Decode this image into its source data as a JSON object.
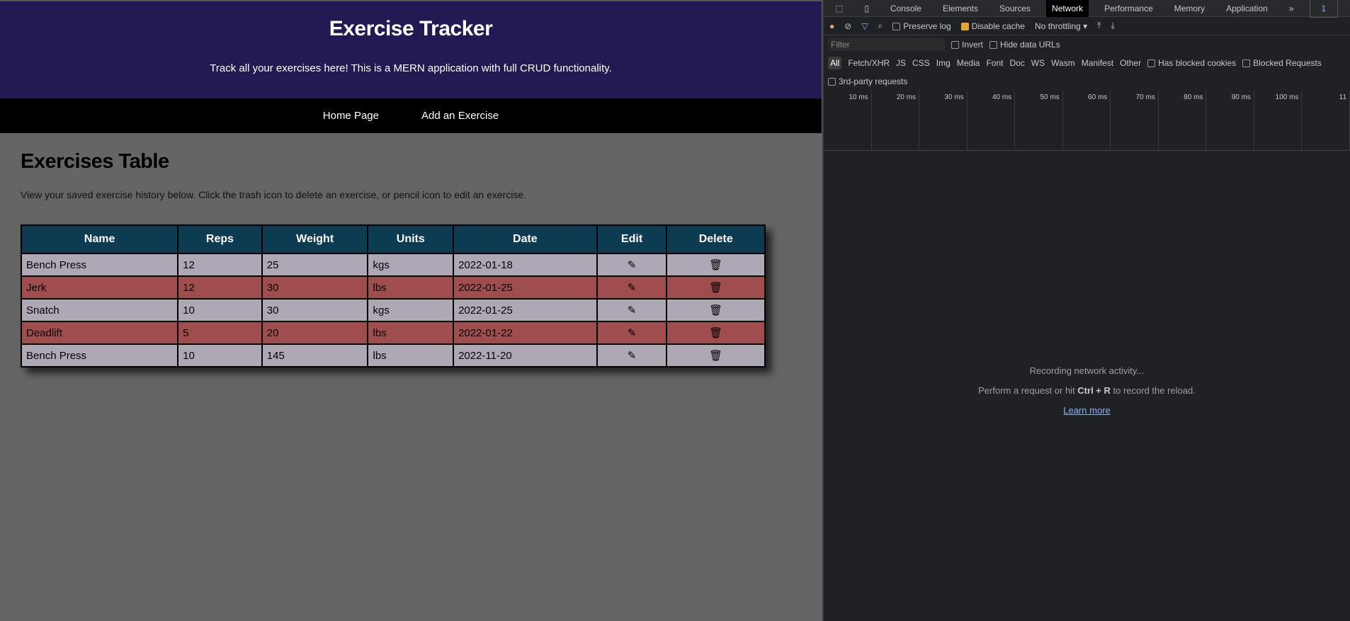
{
  "app": {
    "title": "Exercise Tracker",
    "subtitle": "Track all your exercises here!  This is a MERN application with full CRUD functionality.",
    "nav": [
      "Home Page",
      "Add an Exercise"
    ],
    "heading": "Exercises Table",
    "description": "View your saved exercise history below. Click the trash icon to delete an exercise, or pencil icon to edit an exercise.",
    "columns": [
      "Name",
      "Reps",
      "Weight",
      "Units",
      "Date",
      "Edit",
      "Delete"
    ],
    "rows": [
      {
        "name": "Bench Press",
        "reps": "12",
        "weight": "25",
        "units": "kgs",
        "date": "2022-01-18"
      },
      {
        "name": "Jerk",
        "reps": "12",
        "weight": "30",
        "units": "lbs",
        "date": "2022-01-25"
      },
      {
        "name": "Snatch",
        "reps": "10",
        "weight": "30",
        "units": "kgs",
        "date": "2022-01-25"
      },
      {
        "name": "Deadlift",
        "reps": "5",
        "weight": "20",
        "units": "lbs",
        "date": "2022-01-22"
      },
      {
        "name": "Bench Press",
        "reps": "10",
        "weight": "145",
        "units": "lbs",
        "date": "2022-11-20"
      }
    ]
  },
  "devtools": {
    "tabs": [
      "Console",
      "Elements",
      "Sources",
      "Network",
      "Performance",
      "Memory",
      "Application"
    ],
    "active_tab": "Network",
    "issues_count": "1",
    "preserve_log": "Preserve log",
    "disable_cache": "Disable cache",
    "throttling": "No throttling",
    "filter_placeholder": "Filter",
    "invert": "Invert",
    "hide_data_urls": "Hide data URLs",
    "types": [
      "All",
      "Fetch/XHR",
      "JS",
      "CSS",
      "Img",
      "Media",
      "Font",
      "Doc",
      "WS",
      "Wasm",
      "Manifest",
      "Other"
    ],
    "has_blocked_cookies": "Has blocked cookies",
    "blocked_requests": "Blocked Requests",
    "third_party": "3rd-party requests",
    "ticks": [
      "10 ms",
      "20 ms",
      "30 ms",
      "40 ms",
      "50 ms",
      "60 ms",
      "70 ms",
      "80 ms",
      "90 ms",
      "100 ms",
      "11"
    ],
    "recording": "Recording network activity...",
    "hint_pre": "Perform a request or hit ",
    "hint_keys": "Ctrl + R",
    "hint_post": " to record the reload.",
    "learn_more": "Learn more"
  }
}
